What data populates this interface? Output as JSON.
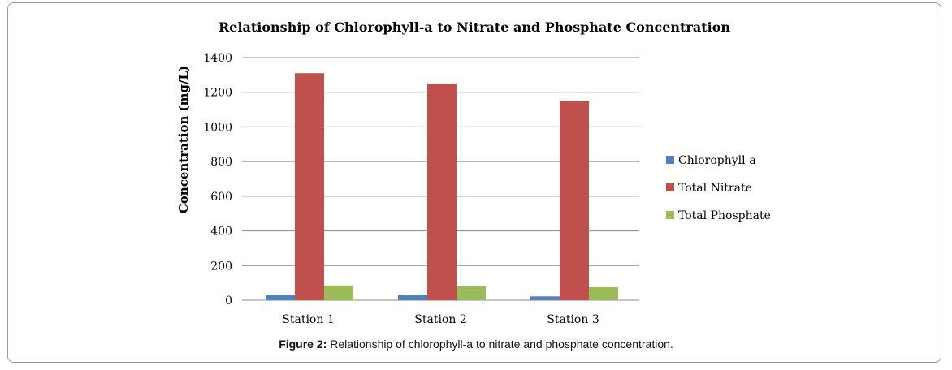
{
  "chart_data": {
    "type": "bar",
    "title": "Relationship of Chlorophyll-a to Nitrate and Phosphate Concentration",
    "ylabel": "Concentration (mg/L)",
    "xlabel": "",
    "categories": [
      "Station 1",
      "Station 2",
      "Station 3"
    ],
    "series": [
      {
        "name": "Chlorophyll-a",
        "color": "#4f81bd",
        "values": [
          32,
          28,
          22
        ]
      },
      {
        "name": "Total Nitrate",
        "color": "#c0504d",
        "values": [
          1310,
          1250,
          1150
        ]
      },
      {
        "name": "Total Phosphate",
        "color": "#9bbb59",
        "values": [
          85,
          82,
          75
        ]
      }
    ],
    "ylim": [
      0,
      1400
    ],
    "yticks": [
      "0",
      "200",
      "400",
      "600",
      "800",
      "1000",
      "1200",
      "1400"
    ],
    "grid": true,
    "legend_position": "right"
  },
  "caption": {
    "label": "Figure 2:",
    "text": " Relationship of chlorophyll-a to nitrate and phosphate concentration."
  }
}
